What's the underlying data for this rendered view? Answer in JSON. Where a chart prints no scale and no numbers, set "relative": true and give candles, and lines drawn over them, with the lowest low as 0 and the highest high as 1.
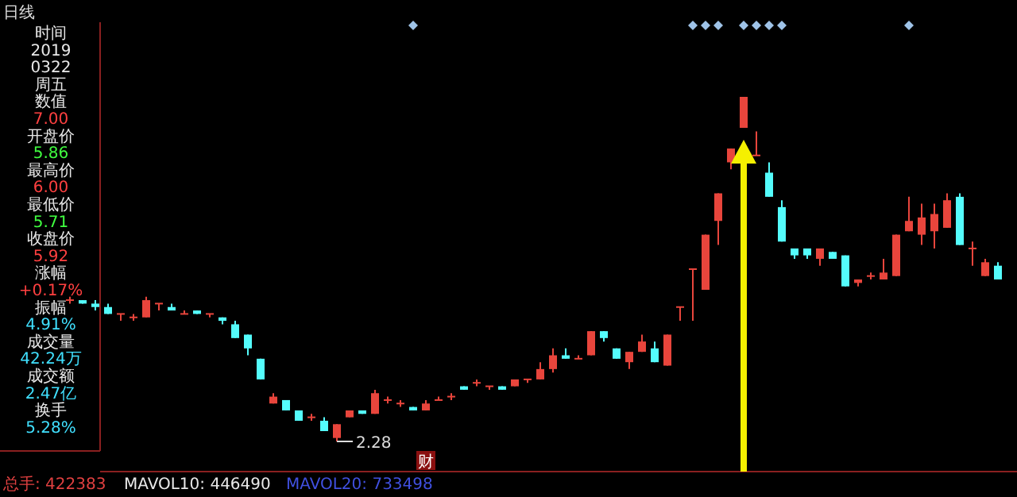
{
  "chart_data": [
    {
      "type": "other",
      "title": "日线",
      "annotations": [
        "时间",
        "2019",
        "0322",
        "周五",
        "数值",
        "7.00",
        "开盘价",
        "5.86",
        "最高价",
        "6.00",
        "最低价",
        "5.71",
        "收盘价",
        "5.92",
        "涨幅",
        "+0.17%",
        "振幅",
        "4.91%",
        "成交量",
        "42.24万",
        "成交额",
        "2.47亿",
        "换手",
        "5.28%"
      ]
    },
    {
      "type": "candlestick",
      "relative": true,
      "categories": [
        null,
        null,
        null,
        null,
        null,
        null,
        null,
        null,
        null,
        null,
        null,
        null,
        null,
        null,
        null,
        null,
        null,
        null,
        null,
        null,
        null,
        null,
        null,
        null,
        null,
        null,
        null,
        null,
        null,
        null,
        null,
        null,
        null,
        null,
        null,
        null,
        null,
        null,
        null,
        null,
        null,
        null,
        null,
        null,
        null,
        null,
        null,
        null,
        null,
        null,
        null,
        null,
        null,
        null,
        null,
        null,
        null,
        null,
        null,
        null,
        null,
        null,
        null,
        null,
        null,
        null,
        null,
        null,
        null,
        null,
        null,
        null,
        null,
        null
      ],
      "ohlc": [
        [
          0.41,
          0.42,
          0.4,
          0.41
        ],
        [
          0.41,
          0.41,
          0.4,
          0.4
        ],
        [
          0.4,
          0.41,
          0.38,
          0.39
        ],
        [
          0.39,
          0.4,
          0.37,
          0.37
        ],
        [
          0.37,
          0.37,
          0.35,
          0.37
        ],
        [
          0.36,
          0.37,
          0.35,
          0.36
        ],
        [
          0.36,
          0.42,
          0.36,
          0.41
        ],
        [
          0.4,
          0.4,
          0.38,
          0.4
        ],
        [
          0.39,
          0.4,
          0.38,
          0.38
        ],
        [
          0.37,
          0.38,
          0.37,
          0.37
        ],
        [
          0.38,
          0.38,
          0.37,
          0.37
        ],
        [
          0.37,
          0.37,
          0.36,
          0.37
        ],
        [
          0.36,
          0.36,
          0.34,
          0.35
        ],
        [
          0.34,
          0.35,
          0.3,
          0.3
        ],
        [
          0.31,
          0.31,
          0.25,
          0.27
        ],
        [
          0.24,
          0.24,
          0.18,
          0.18
        ],
        [
          0.11,
          0.14,
          0.11,
          0.13
        ],
        [
          0.12,
          0.12,
          0.09,
          0.09
        ],
        [
          0.09,
          0.09,
          0.06,
          0.06
        ],
        [
          0.07,
          0.08,
          0.06,
          0.07
        ],
        [
          0.06,
          0.07,
          0.03,
          0.03
        ],
        [
          0.01,
          0.05,
          0.0,
          0.05
        ],
        [
          0.07,
          0.09,
          0.07,
          0.09
        ],
        [
          0.09,
          0.09,
          0.08,
          0.08
        ],
        [
          0.08,
          0.15,
          0.08,
          0.14
        ],
        [
          0.12,
          0.13,
          0.11,
          0.12
        ],
        [
          0.11,
          0.12,
          0.1,
          0.11
        ],
        [
          0.1,
          0.1,
          0.09,
          0.09
        ],
        [
          0.09,
          0.12,
          0.09,
          0.11
        ],
        [
          0.12,
          0.13,
          0.12,
          0.12
        ],
        [
          0.13,
          0.14,
          0.12,
          0.13
        ],
        [
          0.16,
          0.16,
          0.15,
          0.15
        ],
        [
          0.17,
          0.18,
          0.16,
          0.17
        ],
        [
          0.16,
          0.16,
          0.15,
          0.16
        ],
        [
          0.16,
          0.16,
          0.15,
          0.15
        ],
        [
          0.16,
          0.18,
          0.16,
          0.18
        ],
        [
          0.18,
          0.18,
          0.17,
          0.18
        ],
        [
          0.18,
          0.23,
          0.18,
          0.21
        ],
        [
          0.21,
          0.27,
          0.2,
          0.25
        ],
        [
          0.25,
          0.27,
          0.24,
          0.24
        ],
        [
          0.24,
          0.25,
          0.24,
          0.24
        ],
        [
          0.25,
          0.32,
          0.25,
          0.32
        ],
        [
          0.32,
          0.32,
          0.29,
          0.3
        ],
        [
          0.27,
          0.27,
          0.24,
          0.24
        ],
        [
          0.23,
          0.26,
          0.21,
          0.26
        ],
        [
          0.26,
          0.31,
          0.26,
          0.29
        ],
        [
          0.27,
          0.29,
          0.23,
          0.23
        ],
        [
          0.22,
          0.31,
          0.22,
          0.31
        ],
        [
          0.39,
          0.39,
          0.35,
          0.39
        ],
        [
          0.5,
          0.5,
          0.35,
          0.5
        ],
        [
          0.44,
          0.6,
          0.44,
          0.6
        ],
        [
          0.64,
          0.72,
          0.57,
          0.72
        ],
        [
          0.81,
          0.85,
          0.79,
          0.85
        ],
        [
          0.91,
          1.0,
          0.91,
          1.0
        ],
        [
          0.83,
          0.9,
          0.83,
          0.83
        ],
        [
          0.78,
          0.81,
          0.71,
          0.71
        ],
        [
          0.68,
          0.7,
          0.58,
          0.58
        ],
        [
          0.56,
          0.56,
          0.53,
          0.54
        ],
        [
          0.56,
          0.56,
          0.53,
          0.54
        ],
        [
          0.53,
          0.56,
          0.51,
          0.56
        ],
        [
          0.55,
          0.55,
          0.53,
          0.53
        ],
        [
          0.54,
          0.54,
          0.45,
          0.45
        ],
        [
          0.46,
          0.47,
          0.45,
          0.47
        ],
        [
          0.48,
          0.49,
          0.47,
          0.48
        ],
        [
          0.47,
          0.53,
          0.47,
          0.49
        ],
        [
          0.48,
          0.6,
          0.48,
          0.6
        ],
        [
          0.61,
          0.71,
          0.61,
          0.64
        ],
        [
          0.6,
          0.69,
          0.57,
          0.65
        ],
        [
          0.61,
          0.69,
          0.56,
          0.66
        ],
        [
          0.62,
          0.72,
          0.62,
          0.7
        ],
        [
          0.71,
          0.72,
          0.57,
          0.57
        ],
        [
          0.56,
          0.58,
          0.51,
          0.56
        ],
        [
          0.48,
          0.53,
          0.48,
          0.52
        ],
        [
          0.51,
          0.52,
          0.47,
          0.47
        ]
      ],
      "annotations": [
        "2.28",
        "财",
        "总手: 422383",
        "MAVOL10: 446490",
        "MAVOL20: 733498"
      ]
    }
  ]
}
